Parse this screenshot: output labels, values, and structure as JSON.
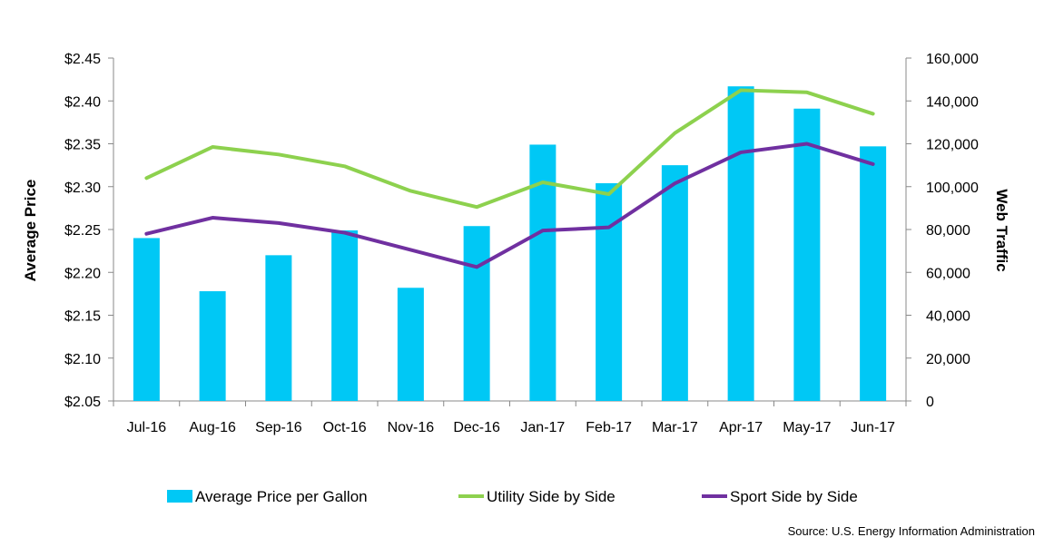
{
  "chart_data": {
    "type": "bar",
    "categories": [
      "Jul-16",
      "Aug-16",
      "Sep-16",
      "Oct-16",
      "Nov-16",
      "Dec-16",
      "Jan-17",
      "Feb-17",
      "Mar-17",
      "Apr-17",
      "May-17",
      "Jun-17"
    ],
    "ylabel": "Average Price",
    "y2label": "Web Traffic",
    "ylim": [
      2.05,
      2.45
    ],
    "y2lim": [
      0,
      160000
    ],
    "y_ticks": [
      "$2.05",
      "$2.10",
      "$2.15",
      "$2.20",
      "$2.25",
      "$2.30",
      "$2.35",
      "$2.40",
      "$2.45"
    ],
    "y2_ticks": [
      "0",
      "20,000",
      "40,000",
      "60,000",
      "80,000",
      "100,000",
      "120,000",
      "140,000",
      "160,000"
    ],
    "legend_position": "bottom",
    "grid": false,
    "series": [
      {
        "name": "Average Price per Gallon",
        "kind": "bar",
        "axis": "left",
        "color": "#00C8F5",
        "values": [
          2.24,
          2.178,
          2.22,
          2.249,
          2.182,
          2.254,
          2.349,
          2.304,
          2.325,
          2.417,
          2.391,
          2.347
        ]
      },
      {
        "name": "Utility Side by Side",
        "kind": "line",
        "axis": "right",
        "color": "#8DD14E",
        "values": [
          104000,
          118500,
          115000,
          109500,
          98000,
          90500,
          102000,
          96500,
          125000,
          145000,
          144000,
          134000
        ]
      },
      {
        "name": "Sport Side by Side",
        "kind": "line",
        "axis": "right",
        "color": "#7030A0",
        "values": [
          78000,
          85500,
          83000,
          78500,
          70500,
          62500,
          79500,
          81000,
          101500,
          116000,
          120000,
          110500
        ]
      }
    ]
  },
  "source": "Source: U.S. Energy Information Administration"
}
